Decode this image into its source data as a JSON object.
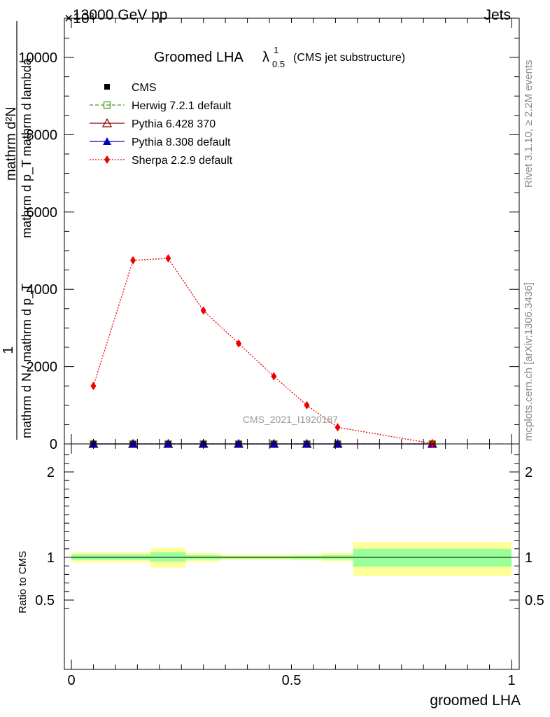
{
  "header": {
    "energy_label": "13000 GeV pp",
    "process_label": "Jets",
    "exponent_label": "×10³",
    "title_main": "Groomed LHA",
    "title_lambda": "λ",
    "title_sub": "0.5",
    "title_sup": "1",
    "title_paren": "(CMS jet substructure)",
    "rivet_label": "Rivet 3.1.10, ≥ 2.2M events",
    "mcplots_label": "mcplots.cern.ch [arXiv:1306.3436]",
    "analysis_label": "CMS_2021_I1920187"
  },
  "colors": {
    "cms": "#000000",
    "herwig": "#4a9a1a",
    "pythia6": "#8b0000",
    "pythia8": "#0000cc",
    "sherpa": "#ee0000",
    "band_outer": "#ffff99",
    "band_inner": "#99ff99"
  },
  "chart_data": [
    {
      "type": "line",
      "ylabel_main": "mathrm d²N",
      "ylabel_line1": "1",
      "ylabel_line2": "mathrm d p_T mathrm d lambda",
      "ylabel_line3": "mathrm d N / mathrm d p_T",
      "ylim": [
        0,
        18000
      ],
      "yticks": [
        {
          "value": 0,
          "label": "0"
        },
        {
          "value": 2000,
          "label": "2000"
        },
        {
          "value": 4000,
          "label": "4000"
        },
        {
          "value": 6000,
          "label": "6000"
        },
        {
          "value": 8000,
          "label": "8000"
        },
        {
          "value": 10000,
          "label": "10000"
        }
      ],
      "xlim": [
        0,
        1
      ],
      "x": [
        0.05,
        0.14,
        0.22,
        0.3,
        0.38,
        0.46,
        0.535,
        0.605,
        0.82
      ],
      "series": [
        {
          "name": "CMS",
          "marker": "square",
          "values": [
            0,
            0,
            0,
            0,
            0,
            0,
            0,
            0,
            0
          ]
        },
        {
          "name": "Herwig 7.2.1 default",
          "marker": "open-square",
          "line": "dashed",
          "values": [
            0,
            0,
            0,
            0,
            0,
            0,
            0,
            0,
            0
          ]
        },
        {
          "name": "Pythia 6.428 370",
          "marker": "open-triangle",
          "line": "solid",
          "values": [
            0,
            0,
            0,
            0,
            0,
            0,
            0,
            0,
            0
          ]
        },
        {
          "name": "Pythia 8.308 default",
          "marker": "triangle",
          "line": "solid",
          "values": [
            0,
            0,
            0,
            0,
            0,
            0,
            0,
            0,
            0
          ]
        },
        {
          "name": "Sherpa 2.2.9 default",
          "marker": "diamond",
          "line": "dotted",
          "values": [
            1500,
            4750,
            4800,
            3450,
            2600,
            1750,
            1000,
            430,
            10
          ]
        }
      ]
    },
    {
      "type": "area",
      "ylabel": "Ratio to CMS",
      "xlabel": "groomed LHA",
      "xlim": [
        0,
        1
      ],
      "ylim": [
        0.3,
        2.3
      ],
      "xticks": [
        {
          "value": 0,
          "label": "0"
        },
        {
          "value": 0.5,
          "label": "0.5"
        },
        {
          "value": 1,
          "label": "1"
        }
      ],
      "yticks": [
        {
          "value": 0.5,
          "label": "0.5"
        },
        {
          "value": 1,
          "label": "1"
        },
        {
          "value": 2,
          "label": "2"
        }
      ],
      "bins": [
        {
          "x0": 0.0,
          "x1": 0.18,
          "outer": [
            0.94,
            1.06
          ],
          "inner": [
            0.97,
            1.035
          ]
        },
        {
          "x0": 0.18,
          "x1": 0.26,
          "outer": [
            0.88,
            1.11
          ],
          "inner": [
            0.95,
            1.06
          ]
        },
        {
          "x0": 0.26,
          "x1": 0.34,
          "outer": [
            0.95,
            1.05
          ],
          "inner": [
            0.975,
            1.025
          ]
        },
        {
          "x0": 0.34,
          "x1": 0.5,
          "outer": [
            0.97,
            1.03
          ],
          "inner": [
            0.985,
            1.015
          ]
        },
        {
          "x0": 0.5,
          "x1": 0.57,
          "outer": [
            0.965,
            1.035
          ],
          "inner": [
            0.98,
            1.02
          ]
        },
        {
          "x0": 0.57,
          "x1": 0.64,
          "outer": [
            0.955,
            1.05
          ],
          "inner": [
            0.975,
            1.025
          ]
        },
        {
          "x0": 0.64,
          "x1": 1.0,
          "outer": [
            0.78,
            1.18
          ],
          "inner": [
            0.89,
            1.1
          ]
        }
      ]
    }
  ]
}
